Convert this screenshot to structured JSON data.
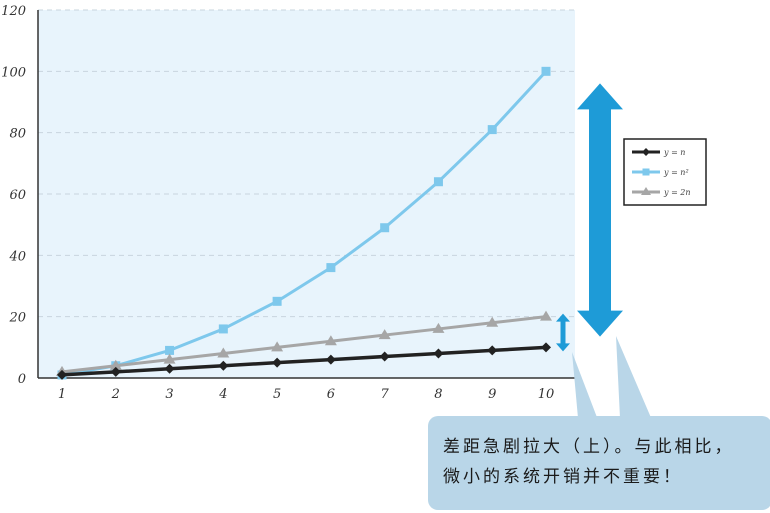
{
  "chart_data": {
    "type": "line",
    "x": [
      1,
      2,
      3,
      4,
      5,
      6,
      7,
      8,
      9,
      10
    ],
    "series": [
      {
        "name": "y = n",
        "values": [
          1,
          2,
          3,
          4,
          5,
          6,
          7,
          8,
          9,
          10
        ],
        "color": "#222222",
        "marker": "diamond"
      },
      {
        "name": "y = n²",
        "values": [
          1,
          4,
          9,
          16,
          25,
          36,
          49,
          64,
          81,
          100
        ],
        "color": "#7ec8ec",
        "marker": "square"
      },
      {
        "name": "y = 2n",
        "values": [
          2,
          4,
          6,
          8,
          10,
          12,
          14,
          16,
          18,
          20
        ],
        "color": "#a6a6a6",
        "marker": "triangle"
      }
    ],
    "x_ticks": [
      "1",
      "2",
      "3",
      "4",
      "5",
      "6",
      "7",
      "8",
      "9",
      "10"
    ],
    "y_ticks": [
      "0",
      "20",
      "40",
      "60",
      "80",
      "100",
      "120"
    ],
    "xlim": [
      1,
      10
    ],
    "ylim": [
      0,
      120
    ],
    "grid": true,
    "legend": "right",
    "plot_background": "#e8f4fc",
    "arrow_color": "#1e9bd7"
  },
  "callout": {
    "line1": "差距急剧拉大（上）。与此相比，",
    "line2": "微小的系统开销并不重要！",
    "background": "#b9d6e8"
  }
}
